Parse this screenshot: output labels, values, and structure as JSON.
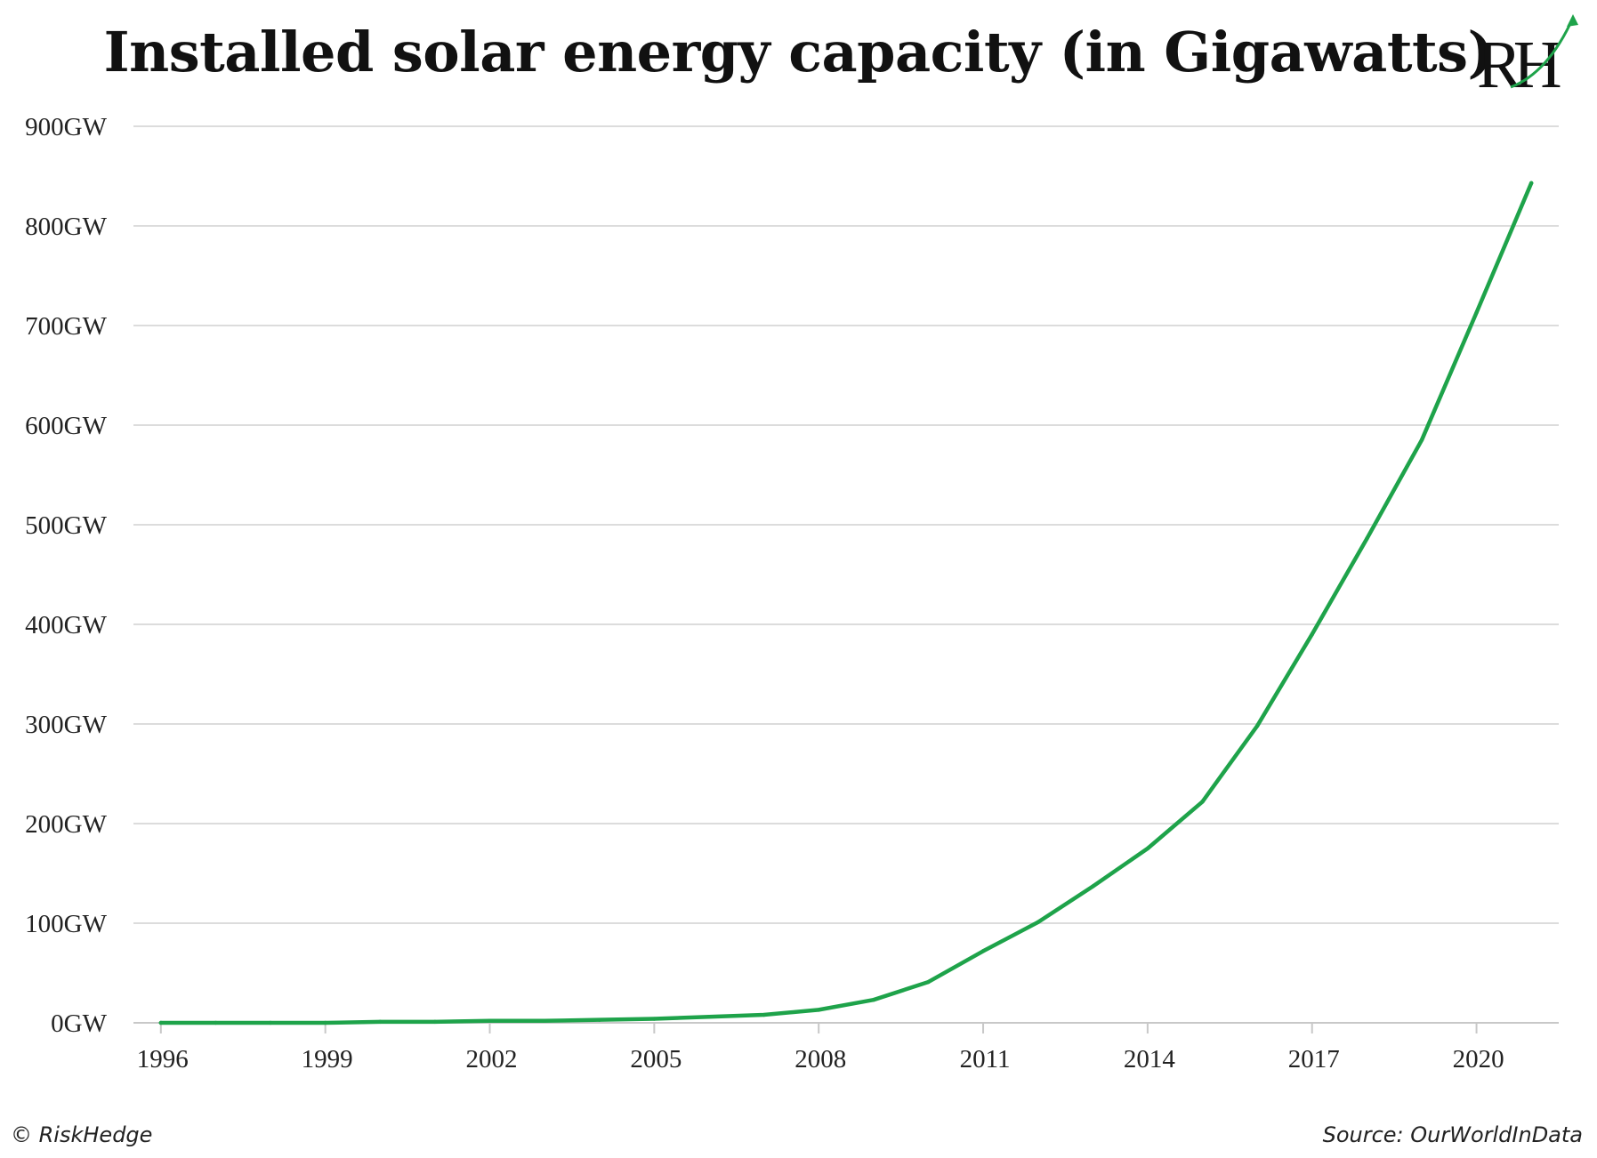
{
  "logo_text": "RH",
  "copyright": "© RiskHedge",
  "source": "Source: OurWorldInData",
  "colors": {
    "line": "#1ea34a",
    "grid": "#dcdcdc",
    "logo_arrow": "#1ea34a"
  },
  "chart_data": {
    "type": "line",
    "title": "Installed solar energy capacity (in Gigawatts)",
    "xlabel": "",
    "ylabel": "",
    "x": [
      1996,
      1997,
      1998,
      1999,
      2000,
      2001,
      2002,
      2003,
      2004,
      2005,
      2006,
      2007,
      2008,
      2009,
      2010,
      2011,
      2012,
      2013,
      2014,
      2015,
      2016,
      2017,
      2018,
      2019,
      2020,
      2021
    ],
    "series": [
      {
        "values": [
          0,
          0,
          0,
          0,
          1,
          1,
          2,
          2,
          3,
          4,
          6,
          8,
          13,
          23,
          41,
          72,
          101,
          137,
          175,
          222,
          298,
          390,
          486,
          585,
          713,
          843
        ]
      }
    ],
    "x_ticks": [
      "1996",
      "1999",
      "2002",
      "2005",
      "2008",
      "2011",
      "2014",
      "2017",
      "2020"
    ],
    "x_tick_values": [
      1996,
      1999,
      2002,
      2005,
      2008,
      2011,
      2014,
      2017,
      2020
    ],
    "y_ticks": [
      "0GW",
      "100GW",
      "200GW",
      "300GW",
      "400GW",
      "500GW",
      "600GW",
      "700GW",
      "800GW",
      "900GW"
    ],
    "y_tick_values": [
      0,
      100,
      200,
      300,
      400,
      500,
      600,
      700,
      800,
      900
    ],
    "xlim": [
      1995.5,
      2021.5
    ],
    "ylim": [
      0,
      900
    ],
    "grid": "horizontal",
    "legend": "none"
  }
}
